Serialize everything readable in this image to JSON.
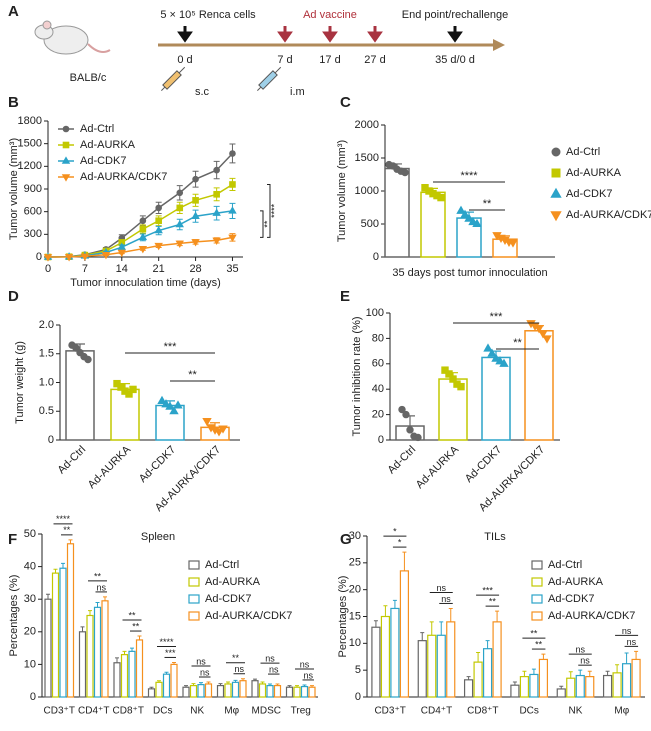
{
  "timeline": {
    "panel_label": "A",
    "strain": "BALB/c",
    "cells": "5 × 10⁵ Renca cells",
    "vaccine": "Ad vaccine",
    "endpoint": "End point/rechallenge",
    "days": [
      "0 d",
      "7 d",
      "17 d",
      "27 d",
      "35 d/0 d"
    ],
    "routes": [
      "s.c",
      "i.m"
    ]
  },
  "chart_data": [
    {
      "panel_label": "B",
      "type": "line",
      "y_label": "Tumor volume (mm³)",
      "x_label": "Tumor innoculation time (days)",
      "x": [
        0,
        4,
        7,
        11,
        14,
        18,
        21,
        25,
        28,
        32,
        35
      ],
      "xlim": [
        0,
        37
      ],
      "xticks": [
        0,
        7,
        14,
        21,
        28,
        35
      ],
      "ylim": [
        0,
        1800
      ],
      "yticks": [
        0,
        300,
        600,
        900,
        1200,
        1500,
        1800
      ],
      "series": [
        {
          "name": "Ad-Ctrl",
          "color": "#666666",
          "marker": "circle",
          "values": [
            0,
            5,
            30,
            100,
            250,
            480,
            650,
            850,
            1030,
            1150,
            1370
          ],
          "errors": [
            0,
            3,
            10,
            25,
            45,
            65,
            75,
            95,
            105,
            115,
            125
          ]
        },
        {
          "name": "Ad-AURKA",
          "color": "#c2c800",
          "marker": "square",
          "values": [
            0,
            4,
            25,
            80,
            190,
            370,
            480,
            650,
            750,
            830,
            960
          ],
          "errors": [
            0,
            3,
            8,
            20,
            40,
            55,
            65,
            75,
            80,
            85,
            80
          ]
        },
        {
          "name": "Ad-CDK7",
          "color": "#2ba3c9",
          "marker": "triangle-up",
          "values": [
            0,
            3,
            15,
            60,
            130,
            260,
            350,
            430,
            540,
            580,
            610
          ],
          "errors": [
            0,
            2,
            6,
            15,
            30,
            45,
            55,
            70,
            80,
            90,
            100
          ]
        },
        {
          "name": "Ad-AURKA/CDK7",
          "color": "#f5901e",
          "marker": "triangle-down",
          "values": [
            0,
            2,
            10,
            30,
            60,
            110,
            150,
            180,
            200,
            220,
            260
          ],
          "errors": [
            0,
            1,
            4,
            10,
            15,
            20,
            25,
            30,
            30,
            35,
            50
          ]
        }
      ],
      "annotations": [
        "****",
        "**"
      ]
    },
    {
      "panel_label": "C",
      "type": "bar",
      "y_label": "Tumor volume (mm³)",
      "x_label": "35 days post tumor innoculation",
      "ylim": [
        0,
        2000
      ],
      "yticks": [
        0,
        500,
        1000,
        1500,
        2000
      ],
      "series": [
        {
          "name": "Ad-Ctrl",
          "color": "#666666",
          "marker": "circle",
          "values": [
            1340
          ],
          "errors": [
            70
          ],
          "points": [
            [
              1400,
              1380,
              1330,
              1300,
              1280
            ]
          ]
        },
        {
          "name": "Ad-AURKA",
          "color": "#c2c800",
          "marker": "square",
          "values": [
            980
          ],
          "errors": [
            60
          ],
          "points": [
            [
              1050,
              1000,
              960,
              930,
              900
            ]
          ]
        },
        {
          "name": "Ad-CDK7",
          "color": "#2ba3c9",
          "marker": "triangle-up",
          "values": [
            590
          ],
          "errors": [
            90
          ],
          "points": [
            [
              700,
              640,
              580,
              530,
              500
            ]
          ]
        },
        {
          "name": "Ad-AURKA/CDK7",
          "color": "#f5901e",
          "marker": "triangle-down",
          "values": [
            270
          ],
          "errors": [
            50
          ],
          "points": [
            [
              330,
              290,
              260,
              230,
              220
            ]
          ]
        }
      ],
      "annotations": [
        "****",
        "**"
      ]
    },
    {
      "panel_label": "D",
      "type": "bar",
      "y_label": "Tumor weight (g)",
      "categories": [
        "Ad-Ctrl",
        "Ad-AURKA",
        "Ad-CDK7",
        "Ad-AURKA/CDK7"
      ],
      "colors": [
        "#666666",
        "#c2c800",
        "#2ba3c9",
        "#f5901e"
      ],
      "markers": [
        "circle",
        "square",
        "triangle-up",
        "triangle-down"
      ],
      "values": [
        1.55,
        0.88,
        0.6,
        0.22
      ],
      "errors": [
        0.12,
        0.1,
        0.08,
        0.08
      ],
      "points": [
        [
          1.65,
          1.6,
          1.52,
          1.45,
          1.4
        ],
        [
          0.98,
          0.92,
          0.85,
          0.8,
          0.88
        ],
        [
          0.68,
          0.62,
          0.58,
          0.5,
          0.6
        ],
        [
          0.33,
          0.22,
          0.18,
          0.15,
          0.2
        ]
      ],
      "ylim": [
        0,
        2
      ],
      "yticks": [
        0,
        0.5,
        {
          "value": 1,
          "label": "1.0"
        },
        1.5,
        {
          "value": 2,
          "label": "2.0"
        }
      ],
      "annotations": [
        "***",
        "**"
      ]
    },
    {
      "panel_label": "E",
      "type": "bar",
      "y_label": "Tumor inhibition rate (%)",
      "categories": [
        "Ad-Ctrl",
        "Ad-AURKA",
        "Ad-CDK7",
        "Ad-AURKA/CDK7"
      ],
      "colors": [
        "#666666",
        "#c2c800",
        "#2ba3c9",
        "#f5901e"
      ],
      "markers": [
        "circle",
        "square",
        "triangle-up",
        "triangle-down"
      ],
      "values": [
        11,
        48,
        65,
        86
      ],
      "errors": [
        8,
        5,
        5,
        4
      ],
      "points": [
        [
          24,
          20,
          8,
          3,
          2
        ],
        [
          55,
          52,
          48,
          44,
          42
        ],
        [
          72,
          68,
          64,
          62,
          60
        ],
        [
          92,
          90,
          88,
          84,
          80
        ]
      ],
      "ylim": [
        0,
        100
      ],
      "yticks": [
        0,
        20,
        40,
        60,
        80,
        100
      ],
      "annotations": [
        "***",
        "**"
      ]
    },
    {
      "panel_label": "F",
      "type": "grouped_bar",
      "title": "Spleen",
      "y_label": "Percentages (%)",
      "categories": [
        "CD3⁺T",
        "CD4⁺T",
        "CD8⁺T",
        "DCs",
        "NK",
        "Mφ",
        "MDSC",
        "Treg"
      ],
      "ylim": [
        0,
        50
      ],
      "yticks": [
        0,
        10,
        20,
        30,
        40,
        50
      ],
      "series": [
        {
          "name": "Ad-Ctrl",
          "color": "#666666",
          "values": [
            30,
            20,
            10.5,
            2.5,
            3,
            3.5,
            5,
            3
          ],
          "errors": [
            1.5,
            1.5,
            1.5,
            0.5,
            0.5,
            0.6,
            0.5,
            0.5
          ]
        },
        {
          "name": "Ad-AURKA",
          "color": "#c2c800",
          "values": [
            38,
            25,
            13,
            4.5,
            3.5,
            4,
            4,
            3
          ],
          "errors": [
            1.2,
            1.5,
            1,
            0.5,
            0.6,
            0.6,
            0.6,
            0.5
          ]
        },
        {
          "name": "Ad-CDK7",
          "color": "#2ba3c9",
          "values": [
            39.5,
            27.5,
            14,
            7,
            3.8,
            4.5,
            3.5,
            3.2
          ],
          "errors": [
            1.5,
            1.5,
            1,
            0.6,
            0.6,
            0.6,
            0.5,
            0.5
          ]
        },
        {
          "name": "Ad-AURKA/CDK7",
          "color": "#f5901e",
          "values": [
            47,
            29.5,
            17.5,
            10,
            4,
            5,
            3.5,
            3
          ],
          "errors": [
            1.2,
            1.2,
            1.2,
            0.6,
            0.6,
            0.6,
            0.5,
            0.5
          ]
        }
      ],
      "annotations": [
        [
          "****",
          "**"
        ],
        [
          "**",
          "ns"
        ],
        [
          "**",
          "**"
        ],
        [
          "****",
          "***"
        ],
        [
          "ns",
          "ns"
        ],
        [
          "**",
          "ns"
        ],
        [
          "ns",
          "ns"
        ],
        [
          "ns",
          "ns"
        ]
      ]
    },
    {
      "panel_label": "G",
      "type": "grouped_bar",
      "title": "TILs",
      "y_label": "Percentages (%)",
      "categories": [
        "CD3⁺T",
        "CD4⁺T",
        "CD8⁺T",
        "DCs",
        "NK",
        "Mφ"
      ],
      "ylim": [
        0,
        30
      ],
      "yticks": [
        0,
        5,
        10,
        15,
        20,
        25,
        30
      ],
      "series": [
        {
          "name": "Ad-Ctrl",
          "color": "#666666",
          "values": [
            13,
            10.5,
            3.2,
            2.2,
            1.5,
            4
          ],
          "errors": [
            1.2,
            1.5,
            0.6,
            0.6,
            0.5,
            0.8
          ]
        },
        {
          "name": "Ad-AURKA",
          "color": "#c2c800",
          "values": [
            15,
            11.5,
            6.5,
            3.8,
            3.5,
            4.5
          ],
          "errors": [
            2,
            2.5,
            1.8,
            1,
            1.2,
            1.5
          ]
        },
        {
          "name": "Ad-CDK7",
          "color": "#2ba3c9",
          "values": [
            16.5,
            11.5,
            9,
            4.2,
            4,
            6.2
          ],
          "errors": [
            1.5,
            2.5,
            1.5,
            1,
            1,
            2
          ]
        },
        {
          "name": "Ad-AURKA/CDK7",
          "color": "#f5901e",
          "values": [
            23.5,
            14,
            14,
            7,
            3.8,
            7
          ],
          "errors": [
            3.5,
            2.5,
            2,
            1,
            1,
            1.5
          ]
        }
      ],
      "annotations": [
        [
          "*",
          "*"
        ],
        [
          "ns",
          "ns"
        ],
        [
          "***",
          "**"
        ],
        [
          "**",
          "**"
        ],
        [
          "ns",
          "ns"
        ],
        [
          "ns",
          "ns"
        ]
      ]
    }
  ]
}
